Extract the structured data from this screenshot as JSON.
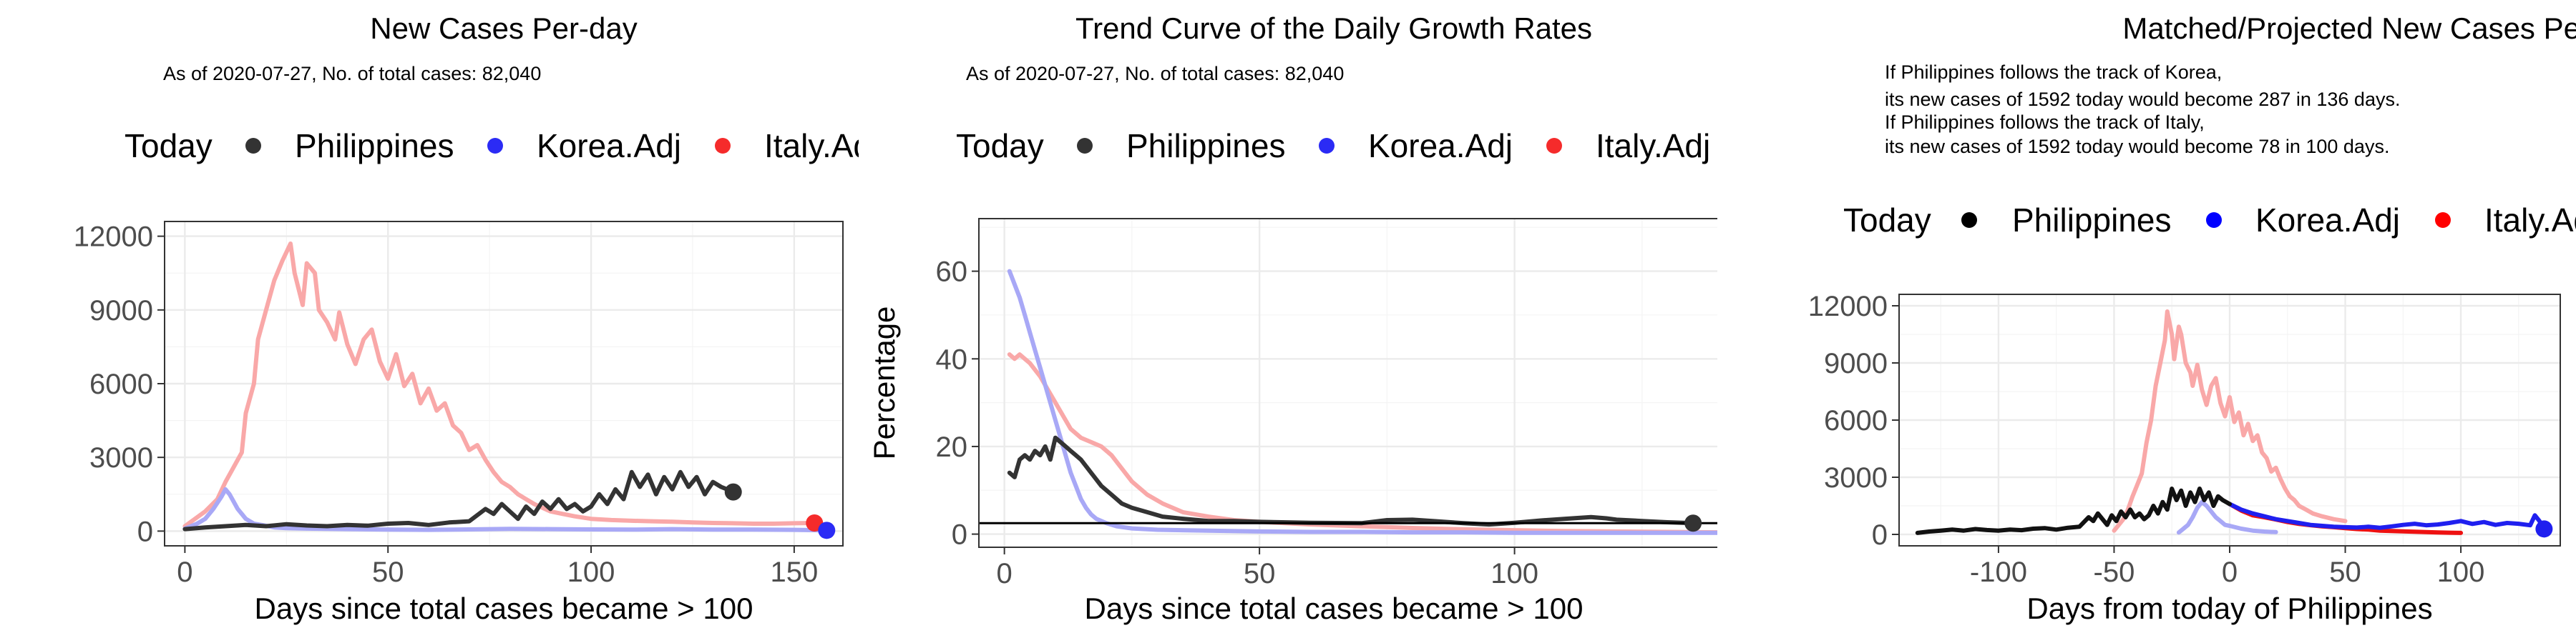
{
  "chart_data": [
    {
      "type": "line",
      "title": "New Cases Per-day",
      "subtitle_lines": [
        "As of 2020-07-27, No. of total cases: 82,040"
      ],
      "legend": {
        "title": "Today",
        "items": [
          "Philippines",
          "Korea.Adj",
          "Italy.Adj"
        ],
        "placement": "top"
      },
      "xlabel": "Days since total cases became > 100",
      "ylabel": "",
      "xlim": [
        -5,
        162
      ],
      "ylim": [
        -600,
        12600
      ],
      "xticks": [
        0,
        50,
        100,
        150
      ],
      "yticks": [
        0,
        3000,
        6000,
        9000,
        12000
      ],
      "xminor": [
        25,
        75,
        125
      ],
      "yminor": [
        1500,
        4500,
        7500,
        10500
      ],
      "grid": true,
      "series": [
        {
          "name": "Italy.Adj",
          "color": "#f9a8a8",
          "x": [
            0,
            5,
            8,
            10,
            12,
            14,
            15,
            17,
            18,
            20,
            22,
            24,
            26,
            27,
            29,
            30,
            32,
            33,
            35,
            37,
            38,
            40,
            42,
            44,
            46,
            48,
            50,
            52,
            54,
            56,
            58,
            60,
            62,
            64,
            66,
            68,
            70,
            72,
            74,
            76,
            78,
            80,
            82,
            84,
            86,
            88,
            90,
            93,
            96,
            100,
            105,
            110,
            115,
            120,
            125,
            130,
            135,
            140,
            145,
            150,
            155
          ],
          "y": [
            200,
            800,
            1300,
            2000,
            2600,
            3200,
            4800,
            6000,
            7800,
            9000,
            10200,
            11000,
            11700,
            10500,
            9200,
            10900,
            10500,
            9000,
            8500,
            7800,
            8900,
            7600,
            6800,
            7800,
            8200,
            6900,
            6200,
            7200,
            5900,
            6400,
            5200,
            5800,
            4900,
            5200,
            4300,
            4000,
            3300,
            3500,
            2900,
            2400,
            2000,
            1800,
            1500,
            1300,
            1100,
            950,
            800,
            700,
            600,
            500,
            450,
            420,
            400,
            380,
            350,
            330,
            320,
            300,
            300,
            320,
            330
          ],
          "today_point": [
            155,
            330
          ]
        },
        {
          "name": "Korea.Adj",
          "color": "#a8a8f6",
          "x": [
            0,
            3,
            5,
            7,
            9,
            10,
            11,
            12,
            13,
            14,
            15,
            17,
            19,
            22,
            25,
            30,
            40,
            50,
            60,
            70,
            80,
            90,
            100,
            110,
            120,
            130,
            140,
            150,
            158
          ],
          "y": [
            100,
            300,
            500,
            900,
            1400,
            1700,
            1500,
            1200,
            900,
            700,
            500,
            300,
            250,
            150,
            120,
            100,
            80,
            60,
            50,
            70,
            90,
            80,
            70,
            60,
            80,
            60,
            60,
            50,
            30
          ],
          "today_point": [
            158,
            30
          ]
        },
        {
          "name": "Philippines",
          "color": "#333333",
          "x": [
            0,
            5,
            10,
            15,
            20,
            25,
            30,
            35,
            40,
            45,
            50,
            55,
            60,
            65,
            70,
            74,
            76,
            78,
            80,
            82,
            84,
            86,
            88,
            90,
            92,
            94,
            96,
            98,
            100,
            102,
            104,
            106,
            108,
            110,
            112,
            114,
            116,
            118,
            120,
            122,
            124,
            126,
            128,
            130,
            132,
            135
          ],
          "y": [
            80,
            150,
            200,
            250,
            200,
            280,
            230,
            200,
            250,
            220,
            300,
            330,
            250,
            350,
            400,
            900,
            700,
            1100,
            800,
            500,
            1000,
            700,
            1200,
            900,
            1300,
            900,
            1100,
            800,
            1000,
            1500,
            1100,
            1700,
            1300,
            2400,
            1800,
            2300,
            1500,
            2200,
            1700,
            2400,
            1800,
            2200,
            1500,
            2000,
            1800,
            1600
          ],
          "today_point": [
            135,
            1592
          ]
        }
      ]
    },
    {
      "type": "line",
      "title": "Trend Curve of the Daily Growth Rates",
      "subtitle_lines": [
        "As of 2020-07-27, No. of total cases: 82,040"
      ],
      "legend": {
        "title": "Today",
        "items": [
          "Philippines",
          "Korea.Adj",
          "Italy.Adj"
        ],
        "placement": "top"
      },
      "xlabel": "Days since total cases became > 100",
      "ylabel": "Percentage",
      "xlim": [
        -5,
        165
      ],
      "ylim": [
        -3,
        72
      ],
      "xticks": [
        0,
        50,
        100,
        150
      ],
      "yticks": [
        0,
        20,
        40,
        60
      ],
      "xminor": [
        25,
        75,
        125
      ],
      "yminor": [
        10,
        30,
        50,
        70
      ],
      "grid": true,
      "hline": 2.5,
      "series": [
        {
          "name": "Italy.Adj",
          "color": "#f9a8a8",
          "x": [
            1,
            2,
            3,
            5,
            7,
            9,
            11,
            13,
            15,
            17,
            19,
            21,
            23,
            25,
            28,
            31,
            35,
            40,
            45,
            50,
            60,
            70,
            80,
            90,
            100,
            110,
            120,
            130,
            140,
            150,
            155
          ],
          "y": [
            41,
            40,
            41,
            39,
            36,
            32,
            28,
            24,
            22,
            21,
            20,
            18,
            15,
            12,
            9,
            7,
            5,
            4,
            3.2,
            2.8,
            2.2,
            1.8,
            1.4,
            1.1,
            0.9,
            0.7,
            0.6,
            0.5,
            0.4,
            0.3,
            0.3
          ],
          "today_point": [
            155,
            0.3
          ]
        },
        {
          "name": "Korea.Adj",
          "color": "#a8a8f6",
          "x": [
            1,
            2,
            3,
            4,
            5,
            6,
            7,
            8,
            9,
            10,
            11,
            12,
            13,
            14,
            15,
            16,
            17,
            18,
            20,
            22,
            25,
            30,
            40,
            50,
            60,
            70,
            80,
            90,
            100,
            110,
            120,
            130,
            140,
            150,
            158
          ],
          "y": [
            60,
            57,
            54,
            50,
            46,
            42,
            38,
            34,
            30,
            26,
            22,
            18,
            14,
            11,
            8,
            6,
            4.5,
            3.5,
            2.5,
            1.8,
            1.3,
            1,
            0.8,
            0.6,
            0.5,
            0.5,
            0.4,
            0.4,
            0.3,
            0.3,
            0.3,
            0.3,
            0.3,
            0.3,
            0.3
          ],
          "today_point": [
            158,
            0.3
          ]
        },
        {
          "name": "Philippines",
          "color": "#333333",
          "x": [
            1,
            2,
            3,
            4,
            5,
            6,
            7,
            8,
            9,
            10,
            11,
            12,
            13,
            14,
            15,
            17,
            19,
            21,
            23,
            25,
            28,
            31,
            35,
            40,
            45,
            50,
            60,
            70,
            75,
            80,
            85,
            90,
            95,
            100,
            105,
            110,
            115,
            118,
            120,
            125,
            130,
            135
          ],
          "y": [
            14,
            13,
            17,
            18,
            17,
            19,
            18,
            20,
            17,
            22,
            21,
            20,
            19,
            18,
            17,
            14,
            11,
            9,
            7,
            6,
            5,
            4,
            3.5,
            3,
            3,
            2.8,
            2.6,
            2.5,
            3.2,
            3.3,
            2.9,
            2.5,
            2.2,
            2.6,
            3.1,
            3.5,
            3.9,
            3.6,
            3.3,
            3.0,
            2.7,
            2.5
          ],
          "today_point": [
            135,
            2.5
          ]
        }
      ]
    },
    {
      "type": "line",
      "title": "Matched/Projected New Cases Per-day",
      "subtitle_lines": [
        "If Philippines follows the track of Korea,",
        "its new cases of 1592 today would become 287 in 136 days.",
        "If Philippines follows the track of Italy,",
        "its new cases of 1592 today would become 78 in 100 days."
      ],
      "legend": {
        "title": "Today",
        "items": [
          "Philippines",
          "Korea.Adj",
          "Italy.Adj"
        ],
        "placement": "top"
      },
      "xlabel": "Days from today of Philippines",
      "ylabel": "",
      "xlim": [
        -143,
        143
      ],
      "ylim": [
        -600,
        12600
      ],
      "xticks": [
        -100,
        -50,
        0,
        50,
        100
      ],
      "yticks": [
        0,
        3000,
        6000,
        9000,
        12000
      ],
      "xminor": [
        -125,
        -75,
        -25,
        25,
        75,
        125
      ],
      "yminor": [
        1500,
        4500,
        7500,
        10500
      ],
      "grid": true,
      "series": [
        {
          "name": "Italy.Adj",
          "color": "#f9a8a8",
          "x": [
            -50,
            -46,
            -44,
            -42,
            -40,
            -38,
            -36,
            -34,
            -32,
            -30,
            -28,
            -27,
            -25,
            -24,
            -22,
            -21,
            -19,
            -17,
            -16,
            -14,
            -12,
            -10,
            -8,
            -6,
            -4,
            -2,
            0,
            2,
            4,
            6,
            8,
            10,
            12,
            14,
            16,
            18,
            20,
            22,
            24,
            26,
            28,
            30,
            33,
            36,
            40,
            45,
            50
          ],
          "y": [
            200,
            800,
            1300,
            2000,
            2600,
            3200,
            4800,
            6000,
            7800,
            9000,
            10200,
            11700,
            10500,
            9200,
            10900,
            10500,
            9000,
            8500,
            7800,
            8900,
            7600,
            6800,
            7800,
            8200,
            6900,
            6200,
            7200,
            5900,
            6400,
            5200,
            5800,
            4900,
            5200,
            4300,
            4000,
            3300,
            3500,
            2900,
            2400,
            2000,
            1800,
            1500,
            1300,
            1100,
            950,
            800,
            700
          ]
        },
        {
          "name": "Italy.Adj",
          "color": "#ee1111",
          "x": [
            0,
            5,
            10,
            15,
            20,
            25,
            30,
            35,
            40,
            45,
            50,
            55,
            60,
            65,
            70,
            75,
            80,
            85,
            90,
            95,
            100
          ],
          "y": [
            1592,
            1250,
            1000,
            900,
            780,
            650,
            550,
            480,
            420,
            380,
            330,
            280,
            250,
            200,
            180,
            160,
            140,
            120,
            100,
            90,
            78
          ]
        },
        {
          "name": "Korea.Adj",
          "color": "#a8a8f6",
          "x": [
            -22,
            -20,
            -18,
            -16,
            -14,
            -12,
            -10,
            -8,
            -6,
            -4,
            -2,
            0,
            5,
            10,
            15,
            20
          ],
          "y": [
            100,
            300,
            500,
            900,
            1400,
            1700,
            1500,
            1200,
            900,
            700,
            500,
            450,
            300,
            200,
            150,
            120
          ]
        },
        {
          "name": "Korea.Adj",
          "color": "#1f1fef",
          "x": [
            0,
            5,
            10,
            15,
            20,
            25,
            30,
            35,
            40,
            45,
            50,
            55,
            60,
            65,
            70,
            75,
            80,
            85,
            90,
            95,
            100,
            105,
            110,
            115,
            120,
            125,
            130,
            132,
            134,
            136
          ],
          "y": [
            1592,
            1300,
            1100,
            950,
            800,
            700,
            600,
            500,
            450,
            400,
            380,
            360,
            400,
            350,
            420,
            500,
            560,
            480,
            520,
            600,
            700,
            550,
            650,
            500,
            600,
            560,
            480,
            1000,
            700,
            287
          ]
        },
        {
          "name": "Philippines",
          "color": "#111111",
          "x": [
            -135,
            -130,
            -125,
            -120,
            -115,
            -110,
            -105,
            -100,
            -95,
            -90,
            -85,
            -80,
            -75,
            -70,
            -65,
            -61,
            -59,
            -57,
            -55,
            -53,
            -51,
            -49,
            -47,
            -45,
            -43,
            -41,
            -39,
            -37,
            -35,
            -33,
            -31,
            -29,
            -27,
            -25,
            -23,
            -21,
            -19,
            -17,
            -15,
            -13,
            -11,
            -9,
            -7,
            -5,
            -3,
            0
          ],
          "y": [
            80,
            150,
            200,
            250,
            200,
            280,
            230,
            200,
            250,
            220,
            300,
            330,
            250,
            350,
            400,
            900,
            700,
            1100,
            800,
            500,
            1000,
            700,
            1200,
            900,
            1300,
            900,
            1100,
            800,
            1000,
            1500,
            1100,
            1700,
            1300,
            2400,
            1800,
            2300,
            1500,
            2200,
            1700,
            2400,
            1800,
            2200,
            1500,
            2000,
            1800,
            1592
          ]
        }
      ],
      "today_points": [
        {
          "name": "Korea.Adj",
          "x": 136,
          "y": 287,
          "color": "#1f1fef"
        }
      ]
    }
  ],
  "legend_colors": {
    "panels_1_2": {
      "Philippines": "#333333",
      "Korea.Adj": "#2b2bf5",
      "Italy.Adj": "#f52b2b"
    },
    "panel_3": {
      "Philippines": "#000000",
      "Korea.Adj": "#0000ff",
      "Italy.Adj": "#ff0000"
    }
  }
}
